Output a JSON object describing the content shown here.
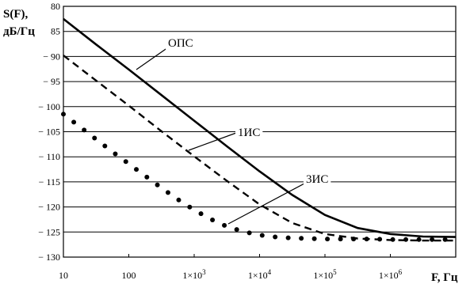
{
  "chart_data": {
    "type": "line",
    "ylabel_line1": "S(F),",
    "ylabel_line2": "дБ/Гц",
    "xlabel": "F, Гц",
    "x_scale": "log",
    "xlim": [
      10,
      10000000
    ],
    "ylim": [
      -130,
      -80
    ],
    "grid": "horizontal",
    "x_ticks": [
      {
        "value": 10,
        "label": "10"
      },
      {
        "value": 100,
        "label": "100"
      },
      {
        "value": 1000,
        "base": "1×10",
        "exp": "3"
      },
      {
        "value": 10000,
        "base": "1×10",
        "exp": "4"
      },
      {
        "value": 100000,
        "base": "1×10",
        "exp": "5"
      },
      {
        "value": 1000000,
        "base": "1×10",
        "exp": "6"
      },
      {
        "value": 10000000,
        "label": ""
      }
    ],
    "y_ticks": [
      {
        "value": -80,
        "label": "80"
      },
      {
        "value": -85,
        "label": "85"
      },
      {
        "value": -90,
        "label": "− 90"
      },
      {
        "value": -95,
        "label": "− 95"
      },
      {
        "value": -100,
        "label": "− 100"
      },
      {
        "value": -105,
        "label": "− 105"
      },
      {
        "value": -110,
        "label": "− 110"
      },
      {
        "value": -115,
        "label": "− 115"
      },
      {
        "value": -120,
        "label": "− 120"
      },
      {
        "value": -125,
        "label": "− 125"
      },
      {
        "value": -130,
        "label": "− 130"
      }
    ],
    "series": [
      {
        "name": "ОПС",
        "style": "solid",
        "x": [
          10,
          31.6,
          100,
          316,
          1000,
          3162,
          10000,
          31620,
          100000,
          316200,
          1000000,
          3162000,
          10000000
        ],
        "y": [
          -82.5,
          -87.6,
          -92.6,
          -97.7,
          -102.8,
          -107.9,
          -112.9,
          -117.6,
          -121.6,
          -124.2,
          -125.4,
          -125.9,
          -126.0
        ]
      },
      {
        "name": "1ИС",
        "style": "dashed",
        "x": [
          10,
          31.6,
          100,
          316,
          1000,
          3162,
          10000,
          31620,
          100000,
          316200,
          1000000,
          3162000,
          10000000
        ],
        "y": [
          -89.8,
          -94.8,
          -99.8,
          -104.9,
          -109.9,
          -114.8,
          -119.5,
          -123.2,
          -125.4,
          -126.3,
          -126.6,
          -126.7,
          -126.7
        ]
      },
      {
        "name": "3ИС",
        "style": "dotted",
        "x": [
          10,
          17.8,
          31.6,
          56.2,
          100,
          178,
          316,
          562,
          1000,
          1778,
          3162,
          5623,
          10000,
          17780,
          31620,
          56230,
          100000,
          177800,
          316200,
          562300,
          1000000,
          1778000,
          3162000,
          5623000,
          10000000
        ],
        "y": [
          -101.5,
          -104.0,
          -106.5,
          -109.0,
          -111.4,
          -113.8,
          -116.2,
          -118.5,
          -120.6,
          -122.4,
          -123.9,
          -124.9,
          -125.6,
          -126.0,
          -126.2,
          -126.3,
          -126.4,
          -126.4,
          -126.4,
          -126.4,
          -126.5,
          -126.5,
          -126.5,
          -126.5,
          -126.5
        ]
      }
    ],
    "annotations": [
      {
        "text": "ОПС",
        "series": "ОПС"
      },
      {
        "text": "1ИС",
        "series": "1ИС"
      },
      {
        "text": "3ИС",
        "series": "3ИС"
      }
    ]
  }
}
